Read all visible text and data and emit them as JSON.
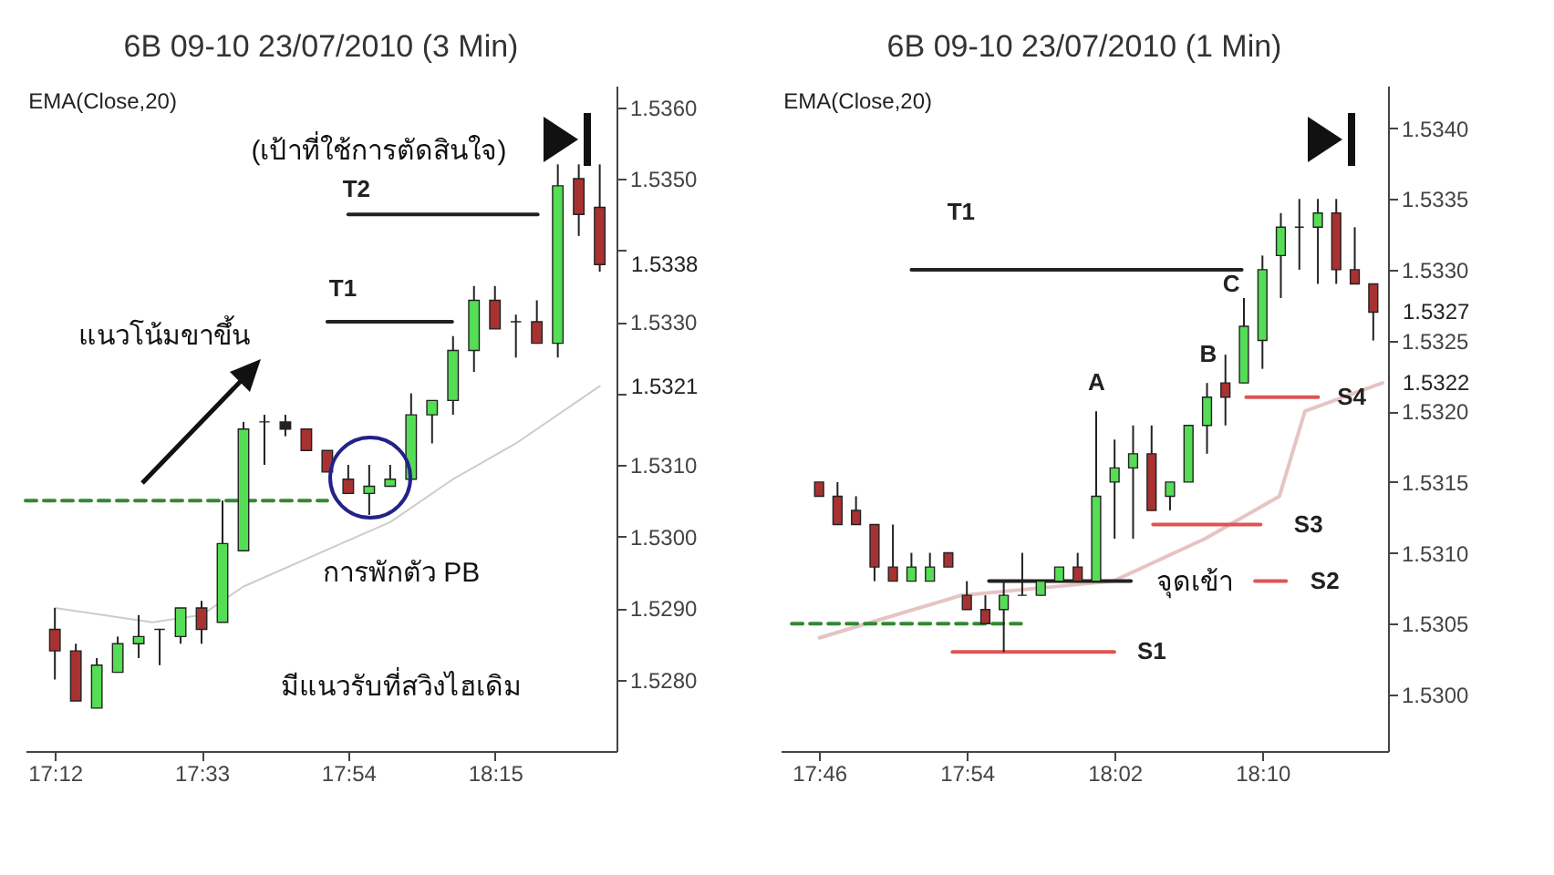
{
  "chart_data": [
    {
      "type": "candlestick",
      "title": "6B 09-10  23/07/2010 (3 Min)",
      "x": [
        17.2,
        17.25,
        17.3,
        17.35,
        17.4,
        17.45,
        17.5,
        17.55,
        17.6,
        17.65,
        17.7,
        17.75,
        17.8,
        17.85,
        17.9,
        17.95,
        18.0,
        18.05,
        18.1,
        18.15,
        18.2,
        18.25,
        18.3,
        18.35,
        18.4,
        18.45,
        18.5
      ],
      "ohlc": [
        [
          1.5287,
          1.529,
          1.528,
          1.5284
        ],
        [
          1.5284,
          1.5285,
          1.5277,
          1.5277
        ],
        [
          1.5276,
          1.5283,
          1.5276,
          1.5282
        ],
        [
          1.5281,
          1.5286,
          1.5281,
          1.5285
        ],
        [
          1.5285,
          1.5289,
          1.5283,
          1.5286
        ],
        [
          1.5287,
          1.5287,
          1.5282,
          1.5287
        ],
        [
          1.5286,
          1.529,
          1.5285,
          1.529
        ],
        [
          1.529,
          1.5291,
          1.5285,
          1.5287
        ],
        [
          1.5288,
          1.5305,
          1.5288,
          1.5299
        ],
        [
          1.5298,
          1.5316,
          1.5298,
          1.5315
        ],
        [
          1.5316,
          1.5317,
          1.531,
          1.5316
        ],
        [
          1.5316,
          1.5317,
          1.5314,
          1.5315
        ],
        [
          1.5315,
          1.5315,
          1.5312,
          1.5312
        ],
        [
          1.5312,
          1.5312,
          1.5309,
          1.5309
        ],
        [
          1.5308,
          1.531,
          1.5306,
          1.5306
        ],
        [
          1.5306,
          1.531,
          1.5303,
          1.5307
        ],
        [
          1.5307,
          1.531,
          1.5307,
          1.5308
        ],
        [
          1.5308,
          1.532,
          1.5308,
          1.5317
        ],
        [
          1.5317,
          1.5319,
          1.5313,
          1.5319
        ],
        [
          1.5319,
          1.5328,
          1.5317,
          1.5326
        ],
        [
          1.5326,
          1.5335,
          1.5323,
          1.5333
        ],
        [
          1.5333,
          1.5335,
          1.5329,
          1.5329
        ],
        [
          1.533,
          1.5331,
          1.5325,
          1.533
        ],
        [
          1.533,
          1.5333,
          1.5327,
          1.5327
        ],
        [
          1.5327,
          1.5352,
          1.5325,
          1.5349
        ],
        [
          1.535,
          1.5352,
          1.5342,
          1.5345
        ],
        [
          1.5346,
          1.5352,
          1.5337,
          1.5338
        ]
      ],
      "colors": [
        "#a83232",
        "#a83232",
        "#55dd55",
        "#55dd55",
        "#55dd55",
        "#222222",
        "#55dd55",
        "#a83232",
        "#55dd55",
        "#55dd55",
        "#222222",
        "#222222",
        "#a83232",
        "#a83232",
        "#a83232",
        "#55dd55",
        "#55dd55",
        "#55dd55",
        "#55dd55",
        "#55dd55",
        "#55dd55",
        "#a83232",
        "#222222",
        "#a83232",
        "#55dd55",
        "#a83232",
        "#a83232"
      ],
      "xlim": [
        17.13,
        18.54
      ],
      "ylim": [
        1.527,
        1.5363
      ],
      "xticks": [
        {
          "value": 17.2,
          "label": "17:12"
        },
        {
          "value": 17.55,
          "label": "17:33"
        },
        {
          "value": 17.9,
          "label": "17:54"
        },
        {
          "value": 18.25,
          "label": "18:15"
        }
      ],
      "yticks": [
        {
          "value": 1.528,
          "label": "1.5280"
        },
        {
          "value": 1.529,
          "label": "1.5290"
        },
        {
          "value": 1.53,
          "label": "1.5300"
        },
        {
          "value": 1.531,
          "label": "1.5310"
        },
        {
          "value": 1.532,
          "label": null
        },
        {
          "value": 1.533,
          "label": "1.5330"
        },
        {
          "value": 1.534,
          "label": null
        },
        {
          "value": 1.535,
          "label": "1.5350"
        },
        {
          "value": 1.536,
          "label": "1.5360"
        }
      ],
      "series": [
        {
          "type": "line",
          "color": "#cccccc",
          "x": [
            17.2,
            17.433,
            17.55,
            17.65,
            17.883,
            18.0,
            18.15,
            18.3,
            18.5
          ],
          "values": [
            1.529,
            1.5288,
            1.5289,
            1.5293,
            1.5299,
            1.5302,
            1.5308,
            1.5313,
            1.5321
          ]
        },
        {
          "type": "line",
          "color": "#338833",
          "line_style": "dashed",
          "x": [
            17.13,
            17.85
          ],
          "values": [
            1.5305,
            1.5305
          ]
        },
        {
          "type": "line",
          "color": "#222222",
          "x": [
            17.85,
            18.148
          ],
          "values": [
            1.533,
            1.533
          ]
        },
        {
          "type": "line",
          "color": "#222222",
          "x": [
            17.9,
            18.352
          ],
          "values": [
            1.5345,
            1.5345
          ]
        }
      ],
      "annotations": [
        "EMA(Close,20)",
        "(เป้าที่ใช้การตัดสินใจ)",
        "T2",
        "T1",
        "แนวโน้มขาขึ้น",
        "การพักตัว PB",
        "มีแนวรับที่สวิงไฮเดิม",
        "1.5338",
        "1.5321"
      ]
    },
    {
      "type": "candlestick",
      "title": "6B 09-10  23/07/2010 (1 Min)",
      "x": [
        17.7667,
        17.7833,
        17.8,
        17.8167,
        17.8333,
        17.85,
        17.8667,
        17.8833,
        17.9,
        17.9167,
        17.9333,
        17.95,
        17.9667,
        17.9833,
        18.0,
        18.0167,
        18.0333,
        18.05,
        18.0667,
        18.0833,
        18.1,
        18.1167,
        18.1333,
        18.15,
        18.1667,
        18.1833,
        18.2,
        18.2167,
        18.2333,
        18.25,
        18.2667
      ],
      "ohlc": [
        [
          1.5315,
          1.5315,
          1.5314,
          1.5314
        ],
        [
          1.5314,
          1.5315,
          1.5312,
          1.5312
        ],
        [
          1.5313,
          1.5314,
          1.5312,
          1.5312
        ],
        [
          1.5312,
          1.5312,
          1.5308,
          1.5309
        ],
        [
          1.5309,
          1.5312,
          1.5308,
          1.5308
        ],
        [
          1.5308,
          1.531,
          1.5308,
          1.5309
        ],
        [
          1.5308,
          1.531,
          1.5308,
          1.5309
        ],
        [
          1.531,
          1.531,
          1.5309,
          1.5309
        ],
        [
          1.5307,
          1.5308,
          1.5306,
          1.5306
        ],
        [
          1.5306,
          1.5307,
          1.5305,
          1.5305
        ],
        [
          1.5306,
          1.5308,
          1.5303,
          1.5307
        ],
        [
          1.5307,
          1.531,
          1.5307,
          1.5307
        ],
        [
          1.5307,
          1.5308,
          1.5307,
          1.5308
        ],
        [
          1.5308,
          1.5309,
          1.5308,
          1.5309
        ],
        [
          1.5309,
          1.531,
          1.5308,
          1.5308
        ],
        [
          1.5308,
          1.532,
          1.5308,
          1.5314
        ],
        [
          1.5315,
          1.5318,
          1.5311,
          1.5316
        ],
        [
          1.5316,
          1.5319,
          1.5311,
          1.5317
        ],
        [
          1.5317,
          1.5319,
          1.5313,
          1.5313
        ],
        [
          1.5314,
          1.5315,
          1.5313,
          1.5315
        ],
        [
          1.5315,
          1.5319,
          1.5315,
          1.5319
        ],
        [
          1.5319,
          1.5322,
          1.5317,
          1.5321
        ],
        [
          1.5322,
          1.5324,
          1.5319,
          1.5321
        ],
        [
          1.5322,
          1.5328,
          1.5322,
          1.5326
        ],
        [
          1.5325,
          1.5331,
          1.5323,
          1.533
        ],
        [
          1.5331,
          1.5334,
          1.5328,
          1.5333
        ],
        [
          1.5333,
          1.5335,
          1.533,
          1.5333
        ],
        [
          1.5333,
          1.5335,
          1.5329,
          1.5334
        ],
        [
          1.5334,
          1.5335,
          1.5329,
          1.533
        ],
        [
          1.533,
          1.5333,
          1.5329,
          1.5329
        ],
        [
          1.5329,
          1.5329,
          1.5325,
          1.5327
        ]
      ],
      "colors": [
        "#a83232",
        "#a83232",
        "#a83232",
        "#a83232",
        "#a83232",
        "#55dd55",
        "#55dd55",
        "#a83232",
        "#a83232",
        "#a83232",
        "#55dd55",
        "#222222",
        "#55dd55",
        "#55dd55",
        "#a83232",
        "#55dd55",
        "#55dd55",
        "#55dd55",
        "#a83232",
        "#55dd55",
        "#55dd55",
        "#55dd55",
        "#a83232",
        "#55dd55",
        "#55dd55",
        "#55dd55",
        "#222222",
        "#55dd55",
        "#a83232",
        "#a83232",
        "#a83232"
      ],
      "xlim": [
        17.732,
        18.28
      ],
      "ylim": [
        1.5296,
        1.5343
      ],
      "xticks": [
        {
          "value": 17.7667,
          "label": "17:46"
        },
        {
          "value": 17.9,
          "label": "17:54"
        },
        {
          "value": 18.0333,
          "label": "18:02"
        },
        {
          "value": 18.1667,
          "label": "18:10"
        }
      ],
      "yticks": [
        {
          "value": 1.53,
          "label": "1.5300"
        },
        {
          "value": 1.5305,
          "label": "1.5305"
        },
        {
          "value": 1.531,
          "label": "1.5310"
        },
        {
          "value": 1.5315,
          "label": "1.5315"
        },
        {
          "value": 1.532,
          "label": "1.5320"
        },
        {
          "value": 1.5325,
          "label": "1.5325"
        },
        {
          "value": 1.533,
          "label": "1.5330"
        },
        {
          "value": 1.5335,
          "label": "1.5335"
        },
        {
          "value": 1.534,
          "label": "1.5340"
        }
      ],
      "series": [
        {
          "type": "line",
          "color": "#e6c4c4",
          "x": [
            17.767,
            17.895,
            18.032,
            18.115,
            18.182,
            18.205,
            18.275
          ],
          "values": [
            1.5304,
            1.5307,
            1.5308,
            1.5311,
            1.5314,
            1.532,
            1.5322
          ]
        },
        {
          "type": "line",
          "color": "#338833",
          "line_style": "dashed",
          "x": [
            17.742,
            17.949
          ],
          "values": [
            1.5305,
            1.5305
          ]
        },
        {
          "type": "line",
          "color": "#222222",
          "x": [
            17.85,
            18.148
          ],
          "values": [
            1.533,
            1.533
          ]
        },
        {
          "type": "line",
          "color": "#222222",
          "x": [
            17.92,
            18.048
          ],
          "values": [
            1.5308,
            1.5308
          ]
        },
        {
          "type": "line",
          "color": "#dd5555",
          "x": [
            17.887,
            18.033
          ],
          "values": [
            1.5303,
            1.5303
          ]
        },
        {
          "type": "line",
          "color": "#dd5555",
          "x": [
            18.16,
            18.188
          ],
          "values": [
            1.5308,
            1.5308
          ]
        },
        {
          "type": "line",
          "color": "#dd5555",
          "x": [
            18.068,
            18.165
          ],
          "values": [
            1.5312,
            1.5312
          ]
        },
        {
          "type": "line",
          "color": "#dd5555",
          "x": [
            18.152,
            18.217
          ],
          "values": [
            1.5321,
            1.5321
          ]
        }
      ],
      "annotations": [
        "EMA(Close,20)",
        "T1",
        "A",
        "B",
        "C",
        "S4",
        "S3",
        "จุดเข้า",
        "S2",
        "S1",
        "1.5327",
        "1.5322"
      ]
    }
  ]
}
